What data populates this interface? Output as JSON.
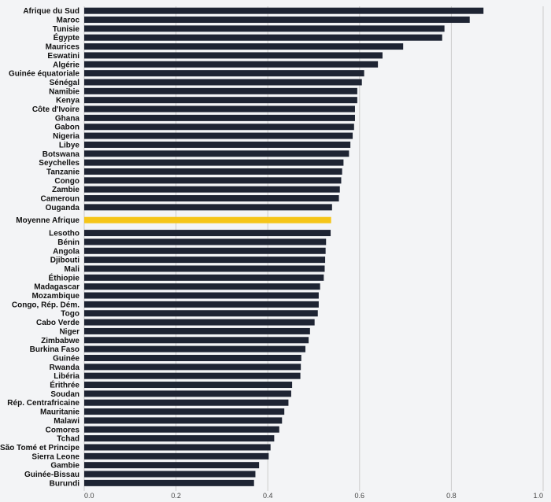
{
  "chart_data": {
    "type": "bar",
    "orientation": "horizontal",
    "title": "",
    "xlabel": "",
    "ylabel": "",
    "xlim": [
      0,
      1.0
    ],
    "xticks": [
      "0.0",
      "0.2",
      "0.4",
      "0.6",
      "0.8",
      "1.0"
    ],
    "grid": true,
    "colors": {
      "bar": "#1e2433",
      "highlight": "#f5c518",
      "grid": "#cccccc",
      "background": "#f3f4f6"
    },
    "highlight_category": "Moyenne Afrique",
    "groups": [
      {
        "categories": [
          "Afrique du Sud",
          "Maroc",
          "Tunisie",
          "Égypte",
          "Maurices",
          "Eswatini",
          "Algérie",
          "Guinée équatoriale",
          "Sénégal",
          "Namibie",
          "Kenya",
          "Côte d'Ivoire",
          "Ghana",
          "Gabon",
          "Nigeria",
          "Libye",
          "Botswana",
          "Seychelles",
          "Tanzanie",
          "Congo",
          "Zambie",
          "Cameroun",
          "Ouganda"
        ],
        "values": [
          0.87,
          0.84,
          0.785,
          0.78,
          0.695,
          0.65,
          0.64,
          0.61,
          0.605,
          0.595,
          0.595,
          0.59,
          0.59,
          0.588,
          0.585,
          0.58,
          0.577,
          0.565,
          0.562,
          0.56,
          0.557,
          0.555,
          0.54
        ]
      },
      {
        "categories": [
          "Moyenne Afrique"
        ],
        "values": [
          0.538
        ]
      },
      {
        "categories": [
          "Lesotho",
          "Bénin",
          "Angola",
          "Djibouti",
          "Mali",
          "Éthiopie",
          "Madagascar",
          "Mozambique",
          "Congo, Rép. Dém.",
          "Togo",
          "Cabo Verde",
          "Niger",
          "Zimbabwe",
          "Burkina Faso",
          "Guinée",
          "Rwanda",
          "Libéria",
          "Érithrée",
          "Soudan",
          "Rép. Centrafricaine",
          "Mauritanie",
          "Malawi",
          "Comores",
          "Tchad",
          "São Tomé et Principe",
          "Sierra Leone",
          "Gambie",
          "Guinée-Bissau",
          "Burundi"
        ],
        "values": [
          0.537,
          0.527,
          0.526,
          0.525,
          0.524,
          0.522,
          0.514,
          0.511,
          0.511,
          0.509,
          0.502,
          0.492,
          0.489,
          0.482,
          0.473,
          0.472,
          0.471,
          0.453,
          0.451,
          0.445,
          0.436,
          0.431,
          0.425,
          0.414,
          0.406,
          0.402,
          0.381,
          0.373,
          0.37
        ]
      }
    ]
  }
}
